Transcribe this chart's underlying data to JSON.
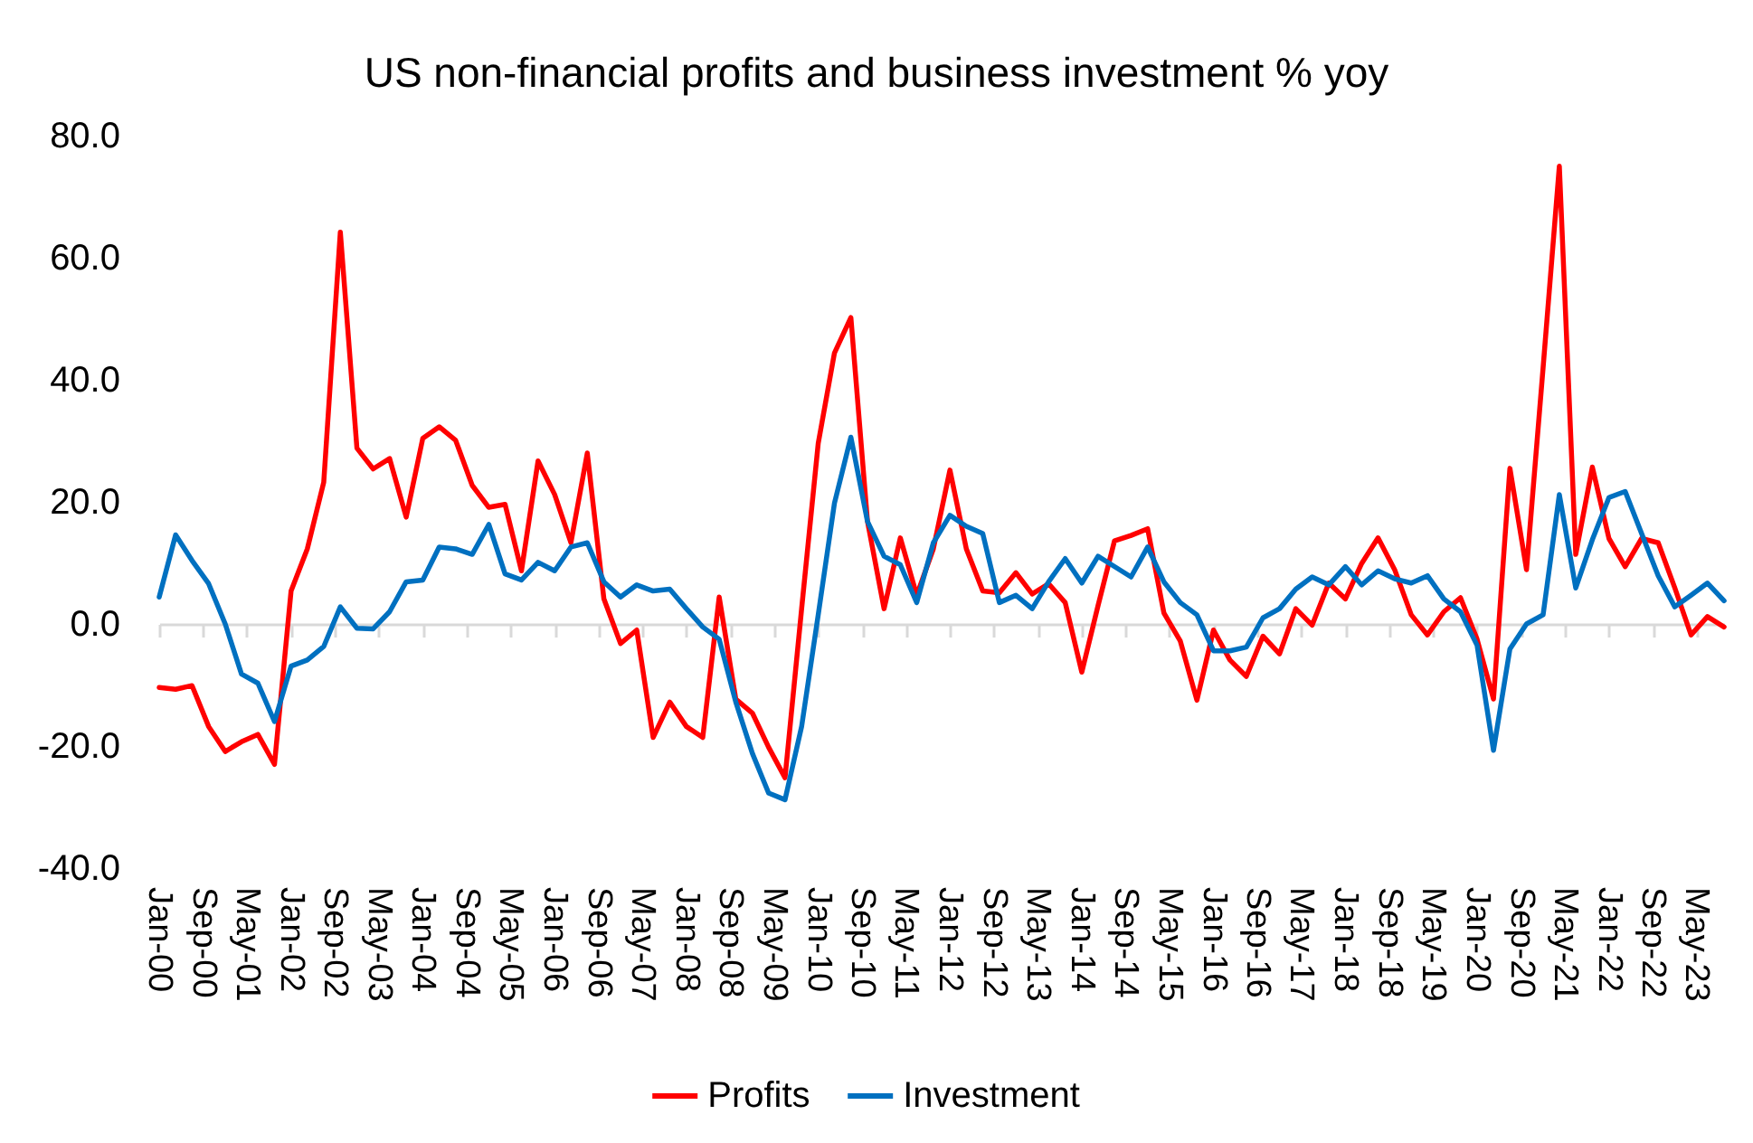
{
  "chart_data": {
    "type": "line",
    "title": "US non-financial profits and business investment % yoy",
    "x": [
      "2000-01",
      "2000-04",
      "2000-07",
      "2000-10",
      "2001-01",
      "2001-04",
      "2001-07",
      "2001-10",
      "2002-01",
      "2002-04",
      "2002-07",
      "2002-10",
      "2003-01",
      "2003-04",
      "2003-07",
      "2003-10",
      "2004-01",
      "2004-04",
      "2004-07",
      "2004-10",
      "2005-01",
      "2005-04",
      "2005-07",
      "2005-10",
      "2006-01",
      "2006-04",
      "2006-07",
      "2006-10",
      "2007-01",
      "2007-04",
      "2007-07",
      "2007-10",
      "2008-01",
      "2008-04",
      "2008-07",
      "2008-10",
      "2009-01",
      "2009-04",
      "2009-07",
      "2009-10",
      "2010-01",
      "2010-04",
      "2010-07",
      "2010-10",
      "2011-01",
      "2011-04",
      "2011-07",
      "2011-10",
      "2012-01",
      "2012-04",
      "2012-07",
      "2012-10",
      "2013-01",
      "2013-04",
      "2013-07",
      "2013-10",
      "2014-01",
      "2014-04",
      "2014-07",
      "2014-10",
      "2015-01",
      "2015-04",
      "2015-07",
      "2015-10",
      "2016-01",
      "2016-04",
      "2016-07",
      "2016-10",
      "2017-01",
      "2017-04",
      "2017-07",
      "2017-10",
      "2018-01",
      "2018-04",
      "2018-07",
      "2018-10",
      "2019-01",
      "2019-04",
      "2019-07",
      "2019-10",
      "2020-01",
      "2020-04",
      "2020-07",
      "2020-10",
      "2021-01",
      "2021-04",
      "2021-07",
      "2021-10",
      "2022-01",
      "2022-04",
      "2022-07",
      "2022-10",
      "2023-01",
      "2023-04",
      "2023-07",
      "2023-10"
    ],
    "series": [
      {
        "name": "Profits",
        "color": "#ff0000",
        "values": [
          -10.4,
          -10.7,
          -10.1,
          -16.8,
          -20.9,
          -19.3,
          -18.1,
          -23.0,
          5.4,
          12.3,
          23.2,
          64.2,
          28.8,
          25.4,
          27.1,
          17.5,
          30.4,
          32.3,
          30.1,
          22.7,
          19.1,
          19.6,
          8.7,
          26.7,
          21.2,
          13.3,
          28.0,
          4.1,
          -3.2,
          -1.0,
          -18.6,
          -12.8,
          -16.8,
          -18.6,
          4.4,
          -12.3,
          -14.6,
          -20.2,
          -25.2,
          2.5,
          29.6,
          44.4,
          50.2,
          16.8,
          2.5,
          14.1,
          4.7,
          12.3,
          25.2,
          12.3,
          5.4,
          5.1,
          8.4,
          4.9,
          6.6,
          3.5,
          -7.9,
          3.0,
          13.6,
          14.5,
          15.6,
          1.8,
          -2.8,
          -12.5,
          -1.0,
          -5.9,
          -8.6,
          -2.0,
          -4.9,
          2.5,
          -0.2,
          6.7,
          4.1,
          9.9,
          14.1,
          8.9,
          1.5,
          -1.8,
          2.0,
          4.3,
          -2.5,
          -12.3,
          25.5,
          8.9,
          42.0,
          75.0,
          11.4,
          25.7,
          14.0,
          9.4,
          14.0,
          13.3,
          5.9,
          -1.8,
          1.2,
          -0.5
        ]
      },
      {
        "name": "Investment",
        "color": "#0070c0",
        "values": [
          4.4,
          14.6,
          10.4,
          6.6,
          0.0,
          -8.2,
          -9.7,
          -16.0,
          -6.9,
          -5.9,
          -3.7,
          2.8,
          -0.7,
          -0.8,
          2.0,
          6.9,
          7.2,
          12.6,
          12.3,
          11.4,
          16.3,
          8.2,
          7.2,
          10.1,
          8.7,
          12.6,
          13.3,
          6.9,
          4.4,
          6.4,
          5.4,
          5.7,
          2.5,
          -0.5,
          -2.5,
          -12.8,
          -21.2,
          -27.7,
          -28.8,
          -16.8,
          1.5,
          19.8,
          30.6,
          16.8,
          11.1,
          9.7,
          3.5,
          13.3,
          17.8,
          16.0,
          14.8,
          3.5,
          4.7,
          2.5,
          6.9,
          10.7,
          6.7,
          11.1,
          9.4,
          7.7,
          12.6,
          6.9,
          3.5,
          1.5,
          -4.4,
          -4.4,
          -3.8,
          1.0,
          2.5,
          5.7,
          7.7,
          6.4,
          9.4,
          6.4,
          8.7,
          7.4,
          6.7,
          7.9,
          4.1,
          2.0,
          -3.5,
          -20.7,
          -4.1,
          0.0,
          1.5,
          21.2,
          5.9,
          13.8,
          20.7,
          21.7,
          14.8,
          7.9,
          2.8,
          4.7,
          6.7,
          3.8
        ]
      }
    ],
    "xlim": [
      "2000-01",
      "2023-10"
    ],
    "xticks": [
      {
        "value": "2000-01",
        "label": "Jan-00"
      },
      {
        "value": "2000-09",
        "label": "Sep-00"
      },
      {
        "value": "2001-05",
        "label": "May-01"
      },
      {
        "value": "2002-01",
        "label": "Jan-02"
      },
      {
        "value": "2002-09",
        "label": "Sep-02"
      },
      {
        "value": "2003-05",
        "label": "May-03"
      },
      {
        "value": "2004-01",
        "label": "Jan-04"
      },
      {
        "value": "2004-09",
        "label": "Sep-04"
      },
      {
        "value": "2005-05",
        "label": "May-05"
      },
      {
        "value": "2006-01",
        "label": "Jan-06"
      },
      {
        "value": "2006-09",
        "label": "Sep-06"
      },
      {
        "value": "2007-05",
        "label": "May-07"
      },
      {
        "value": "2008-01",
        "label": "Jan-08"
      },
      {
        "value": "2008-09",
        "label": "Sep-08"
      },
      {
        "value": "2009-05",
        "label": "May-09"
      },
      {
        "value": "2010-01",
        "label": "Jan-10"
      },
      {
        "value": "2010-09",
        "label": "Sep-10"
      },
      {
        "value": "2011-05",
        "label": "May-11"
      },
      {
        "value": "2012-01",
        "label": "Jan-12"
      },
      {
        "value": "2012-09",
        "label": "Sep-12"
      },
      {
        "value": "2013-05",
        "label": "May-13"
      },
      {
        "value": "2014-01",
        "label": "Jan-14"
      },
      {
        "value": "2014-09",
        "label": "Sep-14"
      },
      {
        "value": "2015-05",
        "label": "May-15"
      },
      {
        "value": "2016-01",
        "label": "Jan-16"
      },
      {
        "value": "2016-09",
        "label": "Sep-16"
      },
      {
        "value": "2017-05",
        "label": "May-17"
      },
      {
        "value": "2018-01",
        "label": "Jan-18"
      },
      {
        "value": "2018-09",
        "label": "Sep-18"
      },
      {
        "value": "2019-05",
        "label": "May-19"
      },
      {
        "value": "2020-01",
        "label": "Jan-20"
      },
      {
        "value": "2020-09",
        "label": "Sep-20"
      },
      {
        "value": "2021-05",
        "label": "May-21"
      },
      {
        "value": "2022-01",
        "label": "Jan-22"
      },
      {
        "value": "2022-09",
        "label": "Sep-22"
      },
      {
        "value": "2023-05",
        "label": "May-23"
      }
    ],
    "ylim": [
      -40,
      80
    ],
    "yticks": [
      {
        "value": -40,
        "label": "-40.0"
      },
      {
        "value": -20,
        "label": "-20.0"
      },
      {
        "value": 0,
        "label": "0.0"
      },
      {
        "value": 20,
        "label": "20.0"
      },
      {
        "value": 40,
        "label": "40.0"
      },
      {
        "value": 60,
        "label": "60.0"
      },
      {
        "value": 80,
        "label": "80.0"
      }
    ],
    "legend": "bottom",
    "line_style": "solid"
  }
}
